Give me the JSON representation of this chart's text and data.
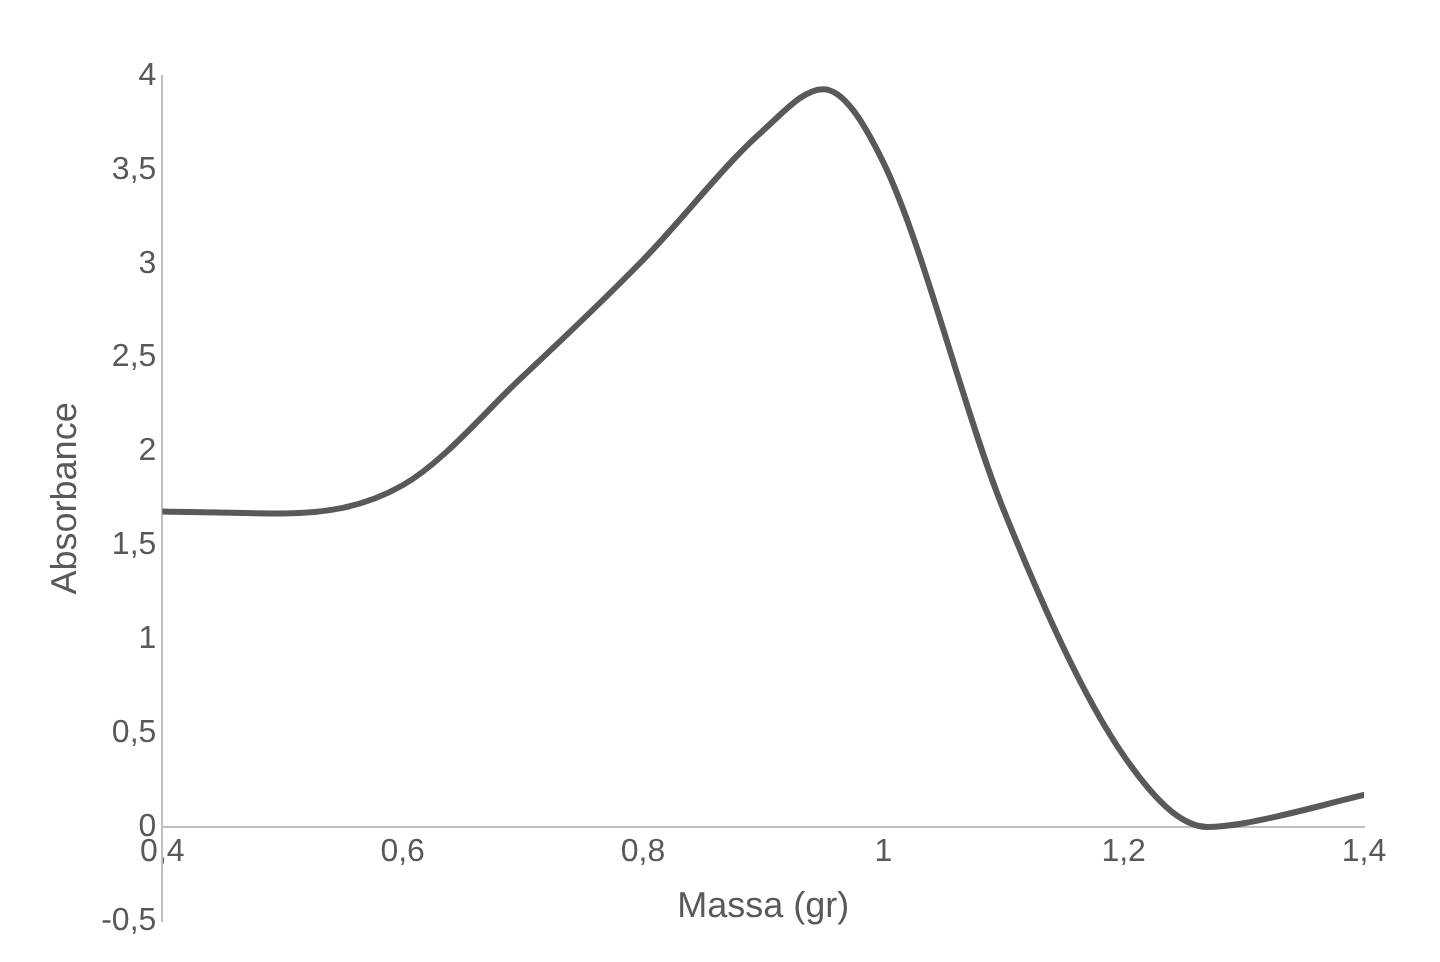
{
  "chart_data": {
    "type": "line",
    "xlabel": "Massa (gr)",
    "ylabel": "Absorbance",
    "x": [
      0.4,
      0.5,
      0.6,
      0.7,
      0.8,
      0.9,
      0.95,
      1.0,
      1.1,
      1.2,
      1.27,
      1.3,
      1.4
    ],
    "series": [
      {
        "color": "#595959",
        "values": [
          1.68,
          1.67,
          1.82,
          2.4,
          3.02,
          3.71,
          3.93,
          3.54,
          1.69,
          0.38,
          0,
          0.02,
          0.17
        ]
      }
    ],
    "xlim": [
      0.4,
      1.4
    ],
    "ylim": [
      -0.5,
      4
    ],
    "xticks": [
      {
        "value": 0.4,
        "label": "0,4"
      },
      {
        "value": 0.6,
        "label": "0,6"
      },
      {
        "value": 0.8,
        "label": "0,8"
      },
      {
        "value": 1,
        "label": "1"
      },
      {
        "value": 1.2,
        "label": "1,2"
      },
      {
        "value": 1.4,
        "label": "1,4"
      }
    ],
    "yticks": [
      {
        "value": -0.5,
        "label": "-0,5"
      },
      0,
      {
        "value": 0.5,
        "label": "0,5"
      },
      1,
      {
        "value": 1.5,
        "label": "1,5"
      },
      2,
      {
        "value": 2.5,
        "label": "2,5"
      },
      3,
      {
        "value": 3.5,
        "label": "3,5"
      },
      4
    ],
    "grid": false,
    "legend": false,
    "marker": "none",
    "line_style": "solid"
  }
}
